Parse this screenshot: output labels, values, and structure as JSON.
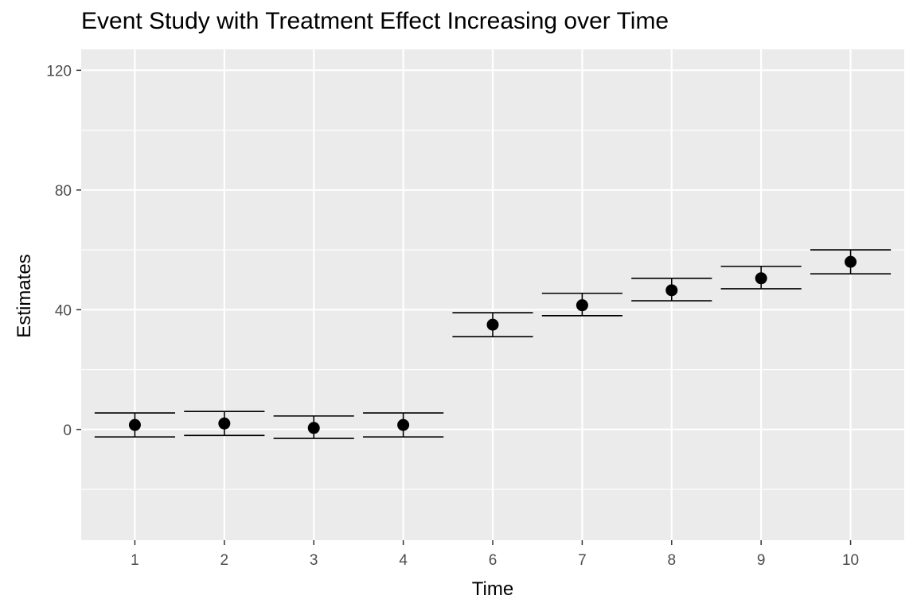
{
  "chart_data": {
    "type": "scatter",
    "title": "Event Study with Treatment Effect Increasing over Time",
    "xlabel": "Time",
    "ylabel": "Estimates",
    "x_scale": "discrete",
    "categories": [
      "1",
      "2",
      "3",
      "4",
      "6",
      "7",
      "8",
      "9",
      "10"
    ],
    "estimates": [
      1.5,
      2.0,
      0.5,
      1.5,
      35.0,
      41.5,
      46.5,
      50.5,
      56.0
    ],
    "ci_lower": [
      -2.5,
      -2.0,
      -3.0,
      -2.5,
      31.0,
      38.0,
      43.0,
      47.0,
      52.0
    ],
    "ci_upper": [
      5.5,
      6.0,
      4.5,
      5.5,
      39.0,
      45.5,
      50.5,
      54.5,
      60.0
    ],
    "ylim": [
      -37,
      127
    ],
    "y_ticks": [
      0,
      40,
      80,
      120
    ],
    "grid": true,
    "legend": "none",
    "colors": {
      "panel": "#ebebeb",
      "grid": "#ffffff",
      "marks": "#000000",
      "tick_text": "#4d4d4d"
    }
  }
}
